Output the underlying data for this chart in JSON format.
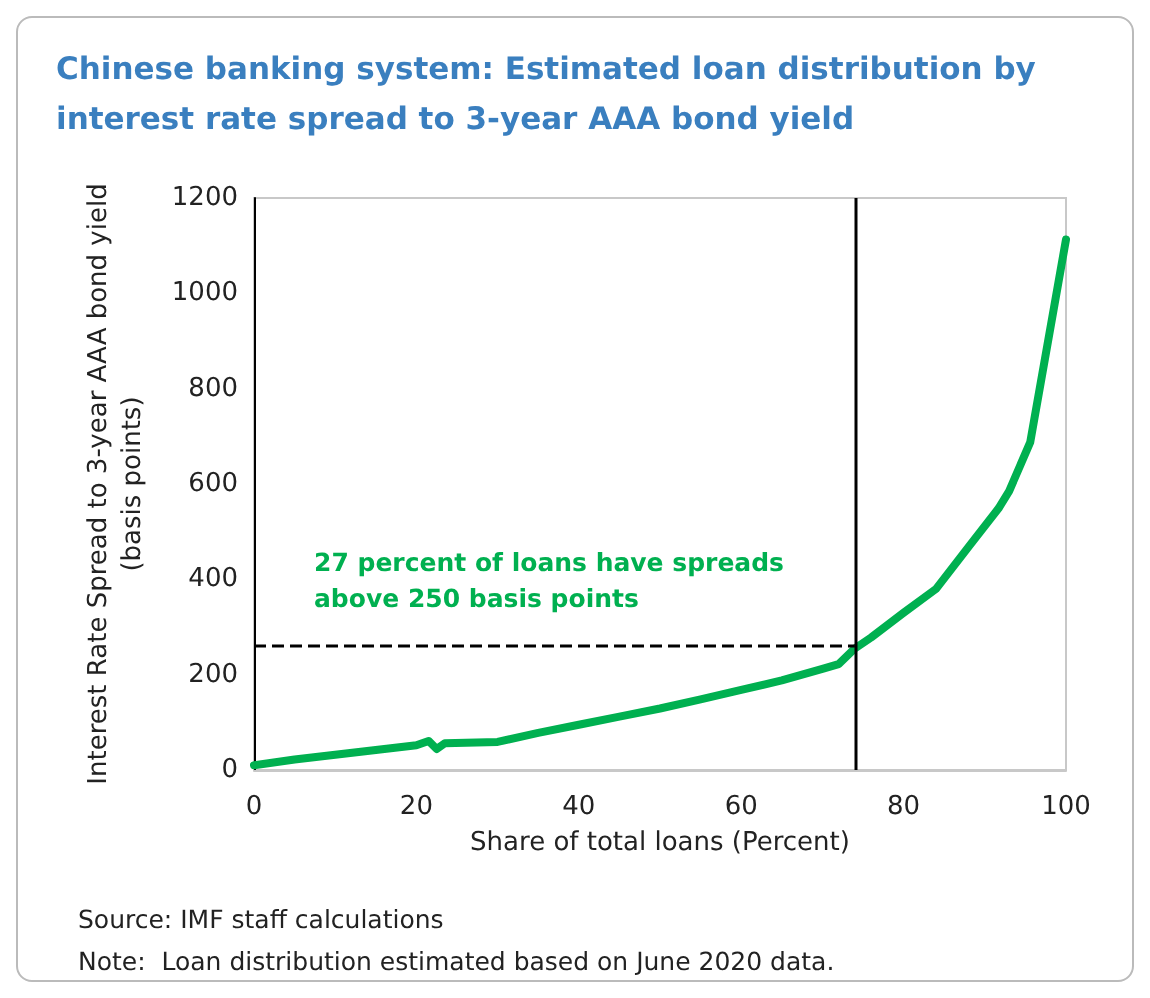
{
  "chart_data": {
    "type": "line",
    "title": "Chinese banking system: Estimated loan distribution by interest rate spread to 3-year AAA bond yield",
    "xlabel": "Share of total loans (Percent)",
    "ylabel": "Interest Rate Spread to 3-year AAA bond yield\n(basis points)",
    "x": [
      0,
      5,
      10,
      15,
      20,
      21.5,
      22.5,
      23.5,
      30,
      35,
      40,
      45,
      50,
      55,
      60,
      65,
      70,
      72,
      74,
      76,
      80,
      84,
      88,
      91.7,
      93,
      95.6,
      100
    ],
    "series": [
      {
        "color": "#00b050",
        "values": [
          10,
          22,
          32,
          42,
          52,
          61,
          44,
          56,
          59,
          78,
          95,
          112,
          129,
          148,
          168,
          188,
          212,
          222,
          255,
          278,
          330,
          380,
          468,
          549,
          585,
          688,
          1113
        ]
      }
    ],
    "xlim": [
      0,
      100
    ],
    "xticks": [
      0,
      20,
      40,
      60,
      80,
      100
    ],
    "ylim": [
      0,
      1200
    ],
    "yticks": [
      0,
      200,
      400,
      600,
      800,
      1000,
      1200
    ],
    "grid": false,
    "marker": "none",
    "line_style": "solid",
    "ref_lines": [
      {
        "axis": "x",
        "value": 74,
        "color": "#000000",
        "line_style": "solid"
      },
      {
        "axis": "y",
        "value": 260,
        "color": "#000000",
        "line_style": "dashed"
      }
    ],
    "annotations": [
      "27 percent of loans have spreads\nabove 250 basis points",
      "Source: IMF staff calculations",
      "Note:  Loan distribution estimated based on June 2020 data."
    ]
  }
}
